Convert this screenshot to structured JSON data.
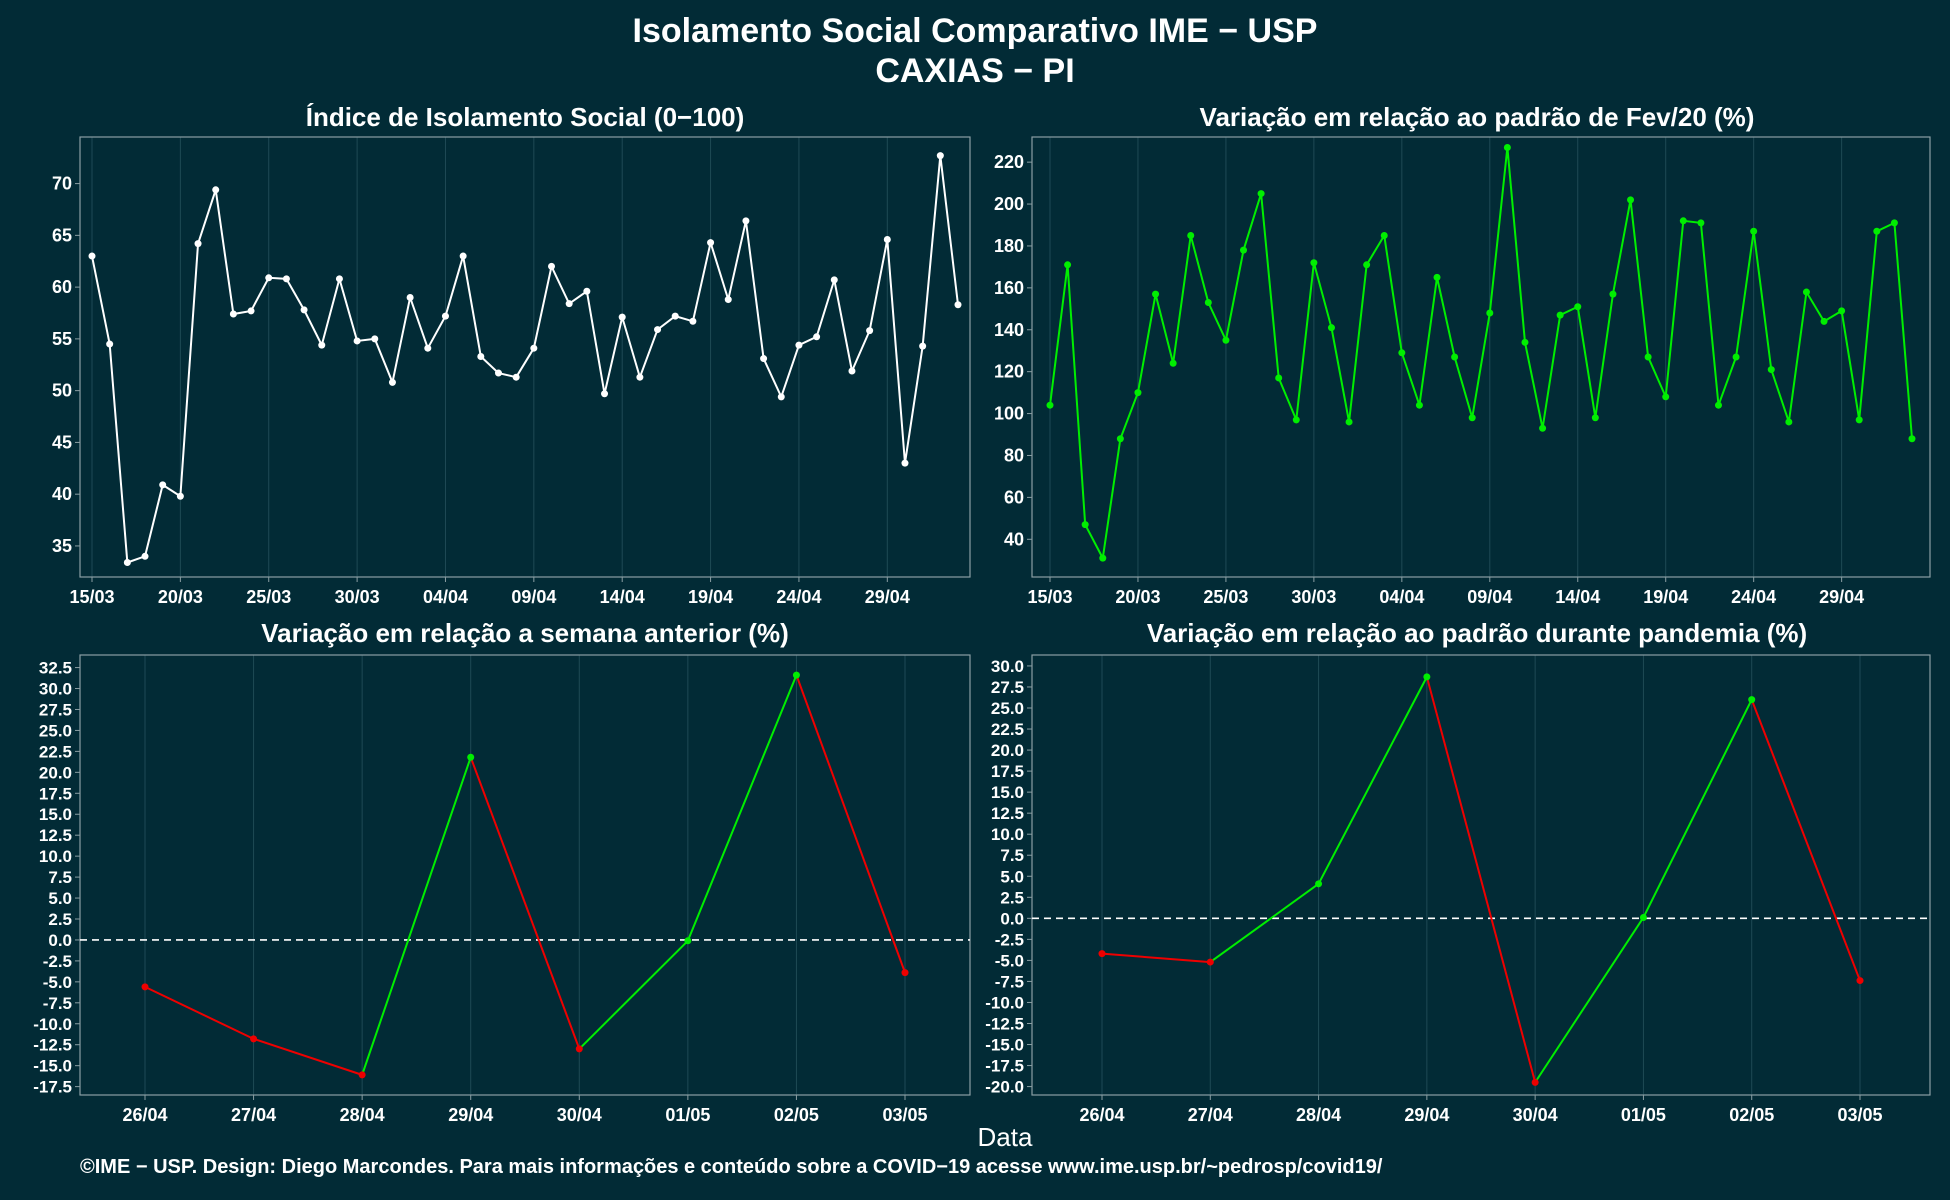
{
  "header": {
    "title": "Isolamento Social Comparativo IME − USP",
    "subtitle": "CAXIAS − PI"
  },
  "xlabel": "Data",
  "footer": "©IME − USP. Design: Diego Marcondes. Para mais informações e conteúdo sobre a COVID−19 acesse www.ime.usp.br/~pedrosp/covid19/",
  "colors": {
    "background": "#022b36",
    "white": "#ffffff",
    "green": "#00ee00",
    "red": "#ee0000",
    "grid": "#1f4a55",
    "border": "#8a9ea3"
  },
  "chart_data": [
    {
      "id": "isolation-index",
      "type": "line",
      "title": "Índice de Isolamento Social (0−100)",
      "color": "#ffffff",
      "x_start": "15/03",
      "tick_labels": [
        "15/03",
        "20/03",
        "25/03",
        "30/03",
        "04/04",
        "09/04",
        "14/04",
        "19/04",
        "24/04",
        "29/04"
      ],
      "yticks": [
        35,
        40,
        45,
        50,
        55,
        60,
        65,
        70
      ],
      "ylim": [
        32,
        74.5
      ],
      "values": [
        63.0,
        54.5,
        33.4,
        34.0,
        40.9,
        39.8,
        64.2,
        69.4,
        57.4,
        57.7,
        60.9,
        60.8,
        57.8,
        54.4,
        60.8,
        54.8,
        55.0,
        50.8,
        59.0,
        54.1,
        57.2,
        63.0,
        53.3,
        51.7,
        51.3,
        54.1,
        62.0,
        58.4,
        59.6,
        49.7,
        57.1,
        51.3,
        55.9,
        57.2,
        56.7,
        64.3,
        58.8,
        66.4,
        53.1,
        49.4,
        54.4,
        55.2,
        60.7,
        51.9,
        55.8,
        64.6,
        43.0,
        54.3,
        72.7,
        58.3
      ]
    },
    {
      "id": "variation-feb",
      "type": "line",
      "title": "Variação em relação ao padrão de Fev/20 (%)",
      "color": "#00ee00",
      "x_start": "15/03",
      "tick_labels": [
        "15/03",
        "20/03",
        "25/03",
        "30/03",
        "04/04",
        "09/04",
        "14/04",
        "19/04",
        "24/04",
        "29/04"
      ],
      "yticks": [
        40,
        60,
        80,
        100,
        120,
        140,
        160,
        180,
        200,
        220
      ],
      "ylim": [
        22,
        232
      ],
      "values": [
        104,
        171,
        47,
        31,
        88,
        110,
        157,
        124,
        185,
        153,
        135,
        178,
        205,
        117,
        97,
        172,
        141,
        96,
        171,
        185,
        129,
        104,
        165,
        127,
        98,
        148,
        227,
        134,
        93,
        147,
        151,
        98,
        157,
        202,
        127,
        108,
        192,
        191,
        104,
        127,
        187,
        121,
        96,
        158,
        144,
        149,
        97,
        187,
        191,
        88
      ]
    },
    {
      "id": "variation-week",
      "type": "line",
      "title": "Variação em relação a semana anterior (%)",
      "categories": [
        "26/04",
        "27/04",
        "28/04",
        "29/04",
        "30/04",
        "01/05",
        "02/05",
        "03/05"
      ],
      "values": [
        -5.6,
        -11.8,
        -16.1,
        21.8,
        -13.0,
        -0.1,
        31.6,
        -3.9
      ],
      "yticks": [
        -17.5,
        -15,
        -12.5,
        -10,
        -7.5,
        -5,
        -2.5,
        0,
        2.5,
        5,
        7.5,
        10,
        12.5,
        15,
        17.5,
        20,
        22.5,
        25,
        27.5,
        30,
        32.5
      ],
      "ylim": [
        -18.5,
        34
      ],
      "up_color": "#00ee00",
      "down_color": "#ee0000",
      "zero_line": true
    },
    {
      "id": "variation-pandemic",
      "type": "line",
      "title": "Variação em relação ao padrão durante pandemia (%)",
      "categories": [
        "26/04",
        "27/04",
        "28/04",
        "29/04",
        "30/04",
        "01/05",
        "02/05",
        "03/05"
      ],
      "values": [
        -4.2,
        -5.2,
        4.1,
        28.7,
        -19.5,
        0.1,
        26.0,
        -7.4
      ],
      "yticks": [
        -20,
        -17.5,
        -15,
        -12.5,
        -10,
        -7.5,
        -5,
        -2.5,
        0,
        2.5,
        5,
        7.5,
        10,
        12.5,
        15,
        17.5,
        20,
        22.5,
        25,
        27.5,
        30
      ],
      "ylim": [
        -21,
        31.3
      ],
      "up_color": "#00ee00",
      "down_color": "#ee0000",
      "zero_line": true
    }
  ]
}
